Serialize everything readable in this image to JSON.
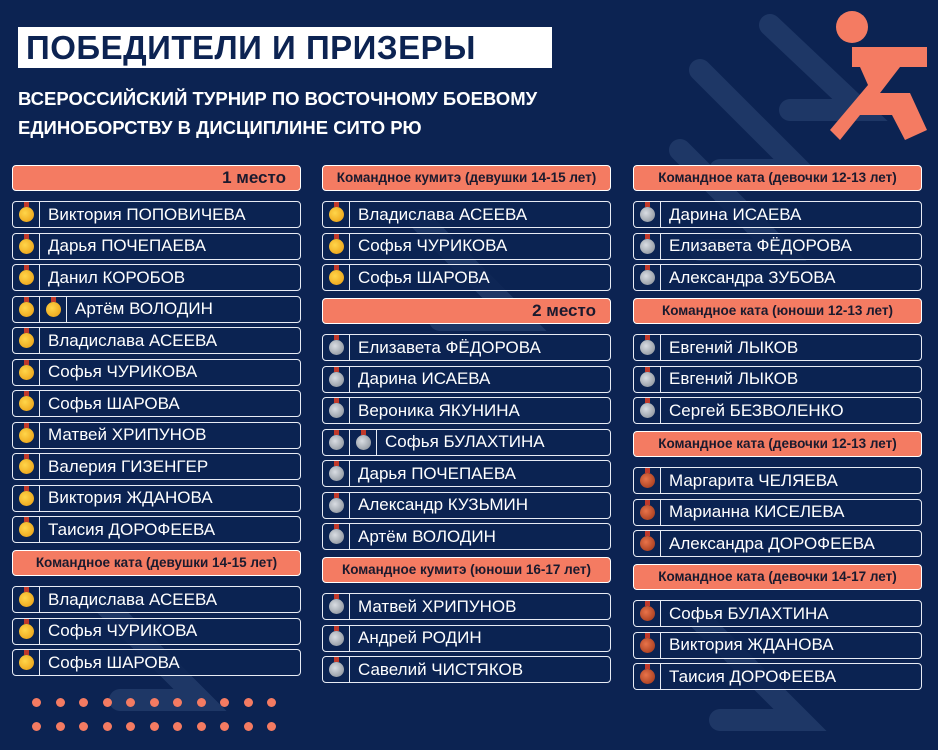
{
  "title": "ПОБЕДИТЕЛИ И ПРИЗЕРЫ",
  "subtitle_lines": [
    "ВСЕРОССИЙСКИЙ ТУРНИР ПО ВОСТОЧНОМУ БОЕВОМУ",
    "ЕДИНОБОРСТВУ В ДИСЦИПЛИНЕ СИТО РЮ"
  ],
  "colors": {
    "background": "#0c2352",
    "accent": "#f47b62",
    "gold": "#f2b52a",
    "silver": "#aab0b8",
    "bronze": "#c8502a"
  },
  "logo": "orange running figure",
  "columns": [
    {
      "groups": [
        {
          "header": "1 место",
          "align": "right",
          "rows": [
            {
              "name": "Виктория ПОПОВИЧЕВА",
              "medals": [
                "gold"
              ]
            },
            {
              "name": "Дарья ПОЧЕПАЕВА",
              "medals": [
                "gold"
              ]
            },
            {
              "name": "Данил КОРОБОВ",
              "medals": [
                "gold"
              ]
            },
            {
              "name": "Артём ВОЛОДИН",
              "medals": [
                "gold",
                "gold"
              ]
            },
            {
              "name": "Владислава АСЕЕВА",
              "medals": [
                "gold"
              ]
            },
            {
              "name": "Софья ЧУРИКОВА",
              "medals": [
                "gold"
              ]
            },
            {
              "name": "Софья ШАРОВА",
              "medals": [
                "gold"
              ]
            },
            {
              "name": "Матвей ХРИПУНОВ",
              "medals": [
                "gold"
              ]
            },
            {
              "name": "Валерия ГИЗЕНГЕР",
              "medals": [
                "gold"
              ]
            },
            {
              "name": "Виктория ЖДАНОВА",
              "medals": [
                "gold"
              ]
            },
            {
              "name": "Таисия ДОРОФЕЕВА",
              "medals": [
                "gold"
              ]
            }
          ]
        },
        {
          "header": "Командное ката (девушки 14-15 лет)",
          "align": "center",
          "rows": [
            {
              "name": "Владислава АСЕЕВА",
              "medals": [
                "gold"
              ]
            },
            {
              "name": "Софья ЧУРИКОВА",
              "medals": [
                "gold"
              ]
            },
            {
              "name": "Софья ШАРОВА",
              "medals": [
                "gold"
              ]
            }
          ]
        }
      ]
    },
    {
      "groups": [
        {
          "header": "Командное кумитэ (девушки 14-15 лет)",
          "align": "center",
          "rows": [
            {
              "name": "Владислава АСЕЕВА",
              "medals": [
                "gold"
              ]
            },
            {
              "name": "Софья ЧУРИКОВА",
              "medals": [
                "gold"
              ]
            },
            {
              "name": "Софья ШАРОВА",
              "medals": [
                "gold"
              ]
            }
          ]
        },
        {
          "header": "2 место",
          "align": "right",
          "rows": [
            {
              "name": "Елизавета ФЁДОРОВА",
              "medals": [
                "silver"
              ]
            },
            {
              "name": "Дарина ИСАЕВА",
              "medals": [
                "silver"
              ]
            },
            {
              "name": "Вероника ЯКУНИНА",
              "medals": [
                "silver"
              ]
            },
            {
              "name": "Софья БУЛАХТИНА",
              "medals": [
                "silver",
                "silver"
              ]
            },
            {
              "name": "Дарья ПОЧЕПАЕВА",
              "medals": [
                "silver"
              ]
            },
            {
              "name": "Александр КУЗЬМИН",
              "medals": [
                "silver"
              ]
            },
            {
              "name": "Артём ВОЛОДИН",
              "medals": [
                "silver"
              ]
            }
          ]
        },
        {
          "header": "Командное кумитэ (юноши 16-17 лет)",
          "align": "center",
          "rows": [
            {
              "name": "Матвей ХРИПУНОВ",
              "medals": [
                "silver"
              ]
            },
            {
              "name": "Андрей РОДИН",
              "medals": [
                "silver"
              ]
            },
            {
              "name": "Савелий ЧИСТЯКОВ",
              "medals": [
                "silver"
              ]
            }
          ]
        }
      ]
    },
    {
      "groups": [
        {
          "header": "Командное ката (девочки 12-13 лет)",
          "align": "center",
          "rows": [
            {
              "name": "Дарина ИСАЕВА",
              "medals": [
                "silver"
              ]
            },
            {
              "name": "Елизавета ФЁДОРОВА",
              "medals": [
                "silver"
              ]
            },
            {
              "name": "Александра ЗУБОВА",
              "medals": [
                "silver"
              ]
            }
          ]
        },
        {
          "header": "Командное ката (юноши 12-13 лет)",
          "align": "center",
          "rows": [
            {
              "name": "Евгений ЛЫКОВ",
              "medals": [
                "silver"
              ]
            },
            {
              "name": "Евгений ЛЫКОВ",
              "medals": [
                "silver"
              ]
            },
            {
              "name": "Сергей БЕЗВОЛЕНКО",
              "medals": [
                "silver"
              ]
            }
          ]
        },
        {
          "header": "Командное ката (девочки 12-13 лет)",
          "align": "center",
          "rows": [
            {
              "name": "Маргарита ЧЕЛЯЕВА",
              "medals": [
                "bronze"
              ]
            },
            {
              "name": "Марианна КИСЕЛЕВА",
              "medals": [
                "bronze"
              ]
            },
            {
              "name": "Александра ДОРОФЕЕВА",
              "medals": [
                "bronze"
              ]
            }
          ]
        },
        {
          "header": "Командное ката (девочки 14-17 лет)",
          "align": "center",
          "rows": [
            {
              "name": "Софья БУЛАХТИНА",
              "medals": [
                "bronze"
              ]
            },
            {
              "name": "Виктория ЖДАНОВА",
              "medals": [
                "bronze"
              ]
            },
            {
              "name": "Таисия ДОРОФЕЕВА",
              "medals": [
                "bronze"
              ]
            }
          ]
        }
      ]
    }
  ]
}
